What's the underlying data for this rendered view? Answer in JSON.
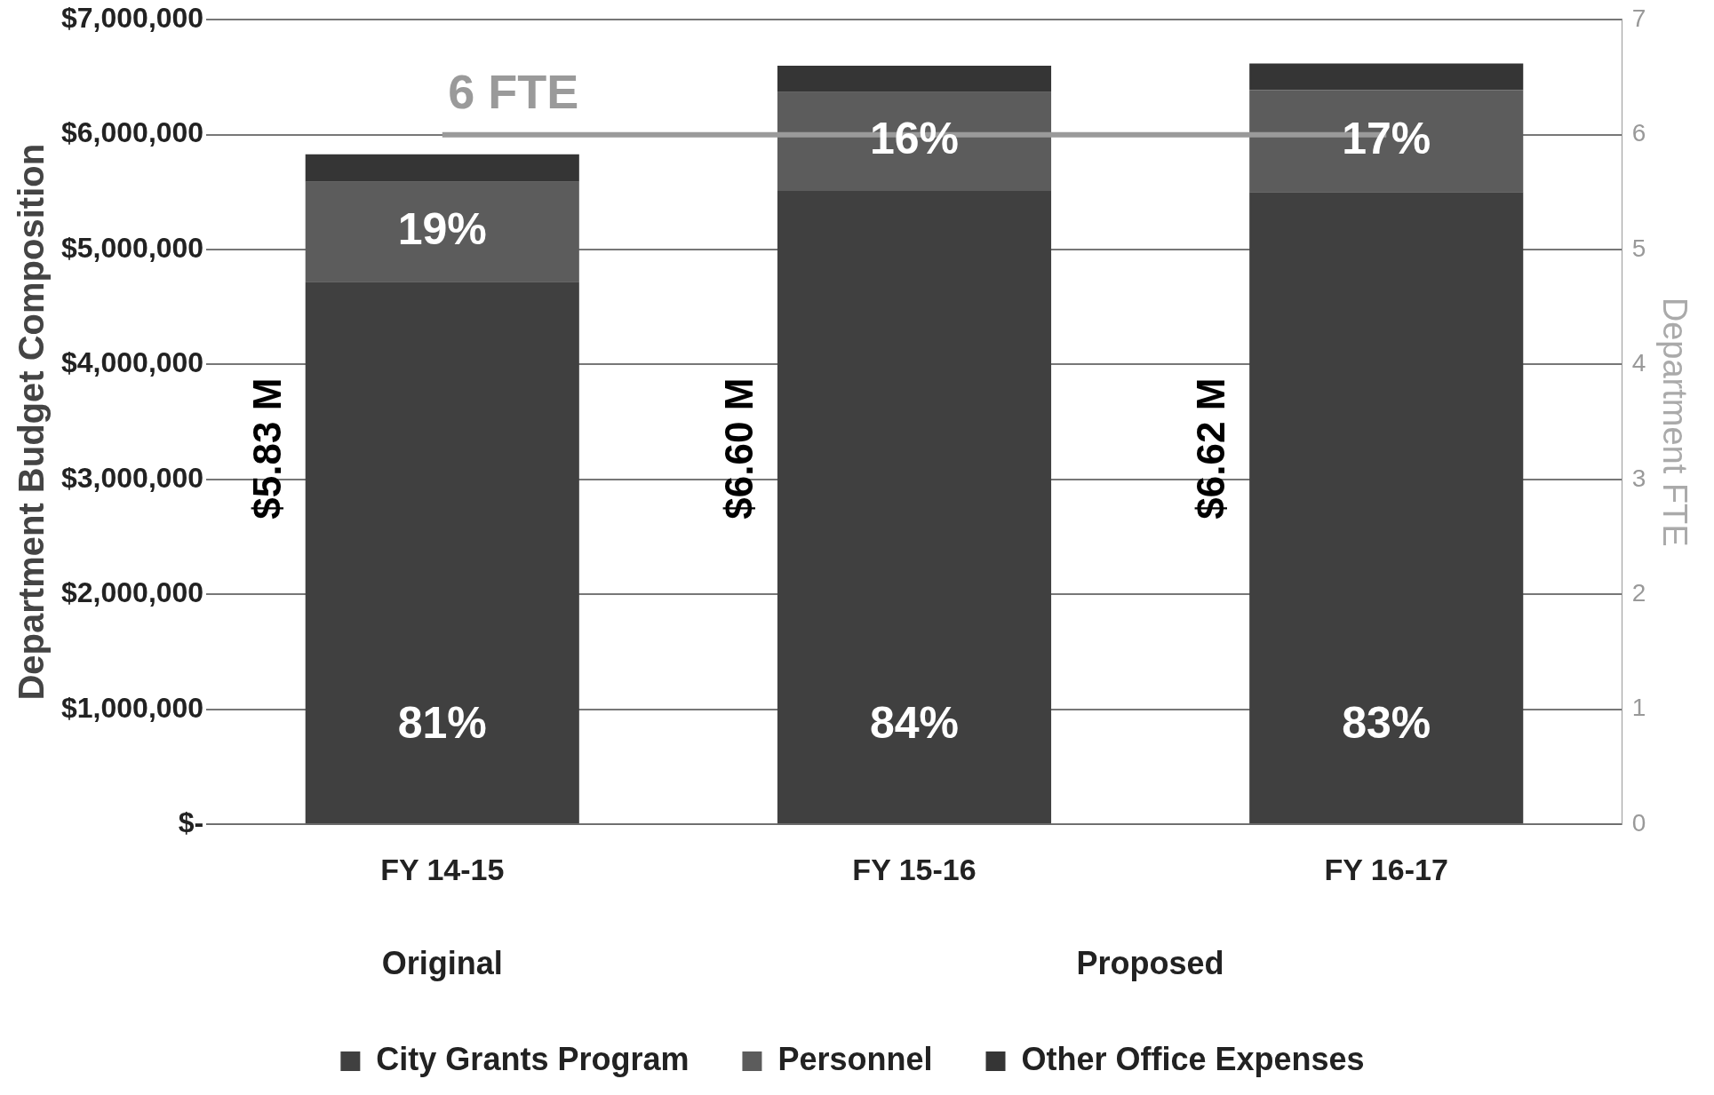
{
  "chart_data": {
    "type": "bar",
    "stacked": true,
    "ylabel": "Department Budget Composition",
    "y2label": "Department FTE",
    "categories": [
      "FY 14-15",
      "FY 15-16",
      "FY 16-17"
    ],
    "series": [
      {
        "name": "City Grants Program",
        "color": "#404040",
        "values": [
          4720000,
          5510000,
          5500000
        ]
      },
      {
        "name": "Personnel",
        "color": "#5c5c5c",
        "values": [
          870000,
          860000,
          890000
        ]
      },
      {
        "name": "Other Office Expenses",
        "color": "#353535",
        "values": [
          240000,
          230000,
          230000
        ]
      },
      {
        "type": "line",
        "axis": "y2",
        "color": "#9a9a9a",
        "values": [
          6,
          6,
          6
        ],
        "marker": "none"
      }
    ],
    "totals": [
      "$5.83 M",
      "$6.60 M",
      "$6.62 M"
    ],
    "ylim": [
      0,
      7000000
    ],
    "yticks": [
      {
        "value": 0,
        "label": "$-"
      },
      {
        "value": 1000000,
        "label": "$1,000,000"
      },
      {
        "value": 2000000,
        "label": "$2,000,000"
      },
      {
        "value": 3000000,
        "label": "$3,000,000"
      },
      {
        "value": 4000000,
        "label": "$4,000,000"
      },
      {
        "value": 5000000,
        "label": "$5,000,000"
      },
      {
        "value": 6000000,
        "label": "$6,000,000"
      },
      {
        "value": 7000000,
        "label": "$7,000,000"
      }
    ],
    "y2lim": [
      0,
      7
    ],
    "y2ticks": [
      0,
      1,
      2,
      3,
      4,
      5,
      6,
      7
    ],
    "annotations": [
      "6 FTE",
      "Original",
      "Proposed",
      "81%",
      "84%",
      "83%",
      "19%",
      "16%",
      "17%"
    ],
    "grid": "y",
    "legend": "bottom"
  }
}
